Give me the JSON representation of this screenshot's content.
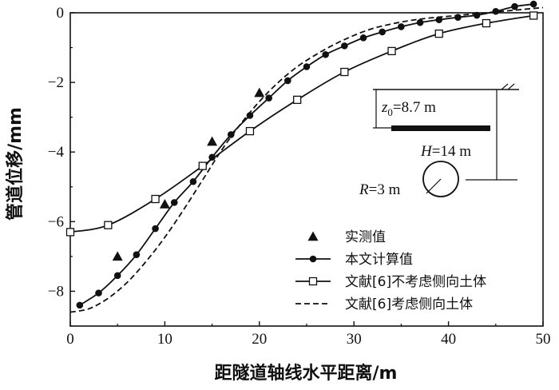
{
  "chart_data": {
    "type": "line",
    "title": "",
    "xlabel": "距隧道轴线水平距离/m",
    "ylabel": "管道位移/mm",
    "xlim": [
      0,
      50
    ],
    "ylim": [
      -9,
      0
    ],
    "xticks": [
      0,
      10,
      20,
      30,
      40,
      50
    ],
    "yticks": [
      0,
      -2,
      -4,
      -6,
      -8
    ],
    "grid": false,
    "legend_position": "bottom-right",
    "series": [
      {
        "name": "实测值",
        "style": "marker-triangle",
        "x": [
          5,
          10,
          15,
          20
        ],
        "y": [
          -7.0,
          -5.5,
          -3.7,
          -2.3
        ]
      },
      {
        "name": "本文计算值",
        "style": "line-filled-circle",
        "x": [
          1,
          3,
          5,
          7,
          9,
          11,
          13,
          15,
          17,
          19,
          21,
          23,
          25,
          27,
          29,
          31,
          33,
          35,
          37,
          39,
          41,
          43,
          45,
          47,
          49
        ],
        "y": [
          -8.4,
          -8.05,
          -7.55,
          -6.95,
          -6.2,
          -5.45,
          -4.85,
          -4.15,
          -3.5,
          -2.95,
          -2.45,
          -1.95,
          -1.55,
          -1.2,
          -0.95,
          -0.72,
          -0.55,
          -0.4,
          -0.28,
          -0.2,
          -0.13,
          -0.07,
          0.04,
          0.18,
          0.25
        ]
      },
      {
        "name": "文献[6]不考虑侧向土体",
        "style": "line-open-square",
        "x": [
          0,
          4,
          9,
          14,
          19,
          24,
          29,
          34,
          39,
          44,
          49
        ],
        "y": [
          -6.3,
          -6.1,
          -5.35,
          -4.4,
          -3.4,
          -2.5,
          -1.7,
          -1.1,
          -0.6,
          -0.3,
          -0.08
        ]
      },
      {
        "name": "文献[6]考虑侧向土体",
        "style": "dashed",
        "x": [
          0,
          2,
          4,
          6,
          8,
          10,
          12,
          14,
          16,
          18,
          20,
          22,
          24,
          26,
          28,
          30,
          32,
          34,
          36,
          38,
          40,
          42,
          44,
          46,
          48,
          50
        ],
        "y": [
          -8.6,
          -8.5,
          -8.2,
          -7.75,
          -7.15,
          -6.45,
          -5.65,
          -4.8,
          -3.95,
          -3.2,
          -2.55,
          -2.0,
          -1.55,
          -1.2,
          -0.9,
          -0.65,
          -0.45,
          -0.32,
          -0.22,
          -0.15,
          -0.1,
          -0.05,
          0.0,
          0.05,
          0.1,
          0.15
        ]
      }
    ],
    "inset": {
      "z0_label": "z",
      "z0_sub": "0",
      "z0_value": "=8.7 m",
      "H_label": "H",
      "H_value": "=14 m",
      "R_label": "R",
      "R_value": "=3 m"
    }
  }
}
